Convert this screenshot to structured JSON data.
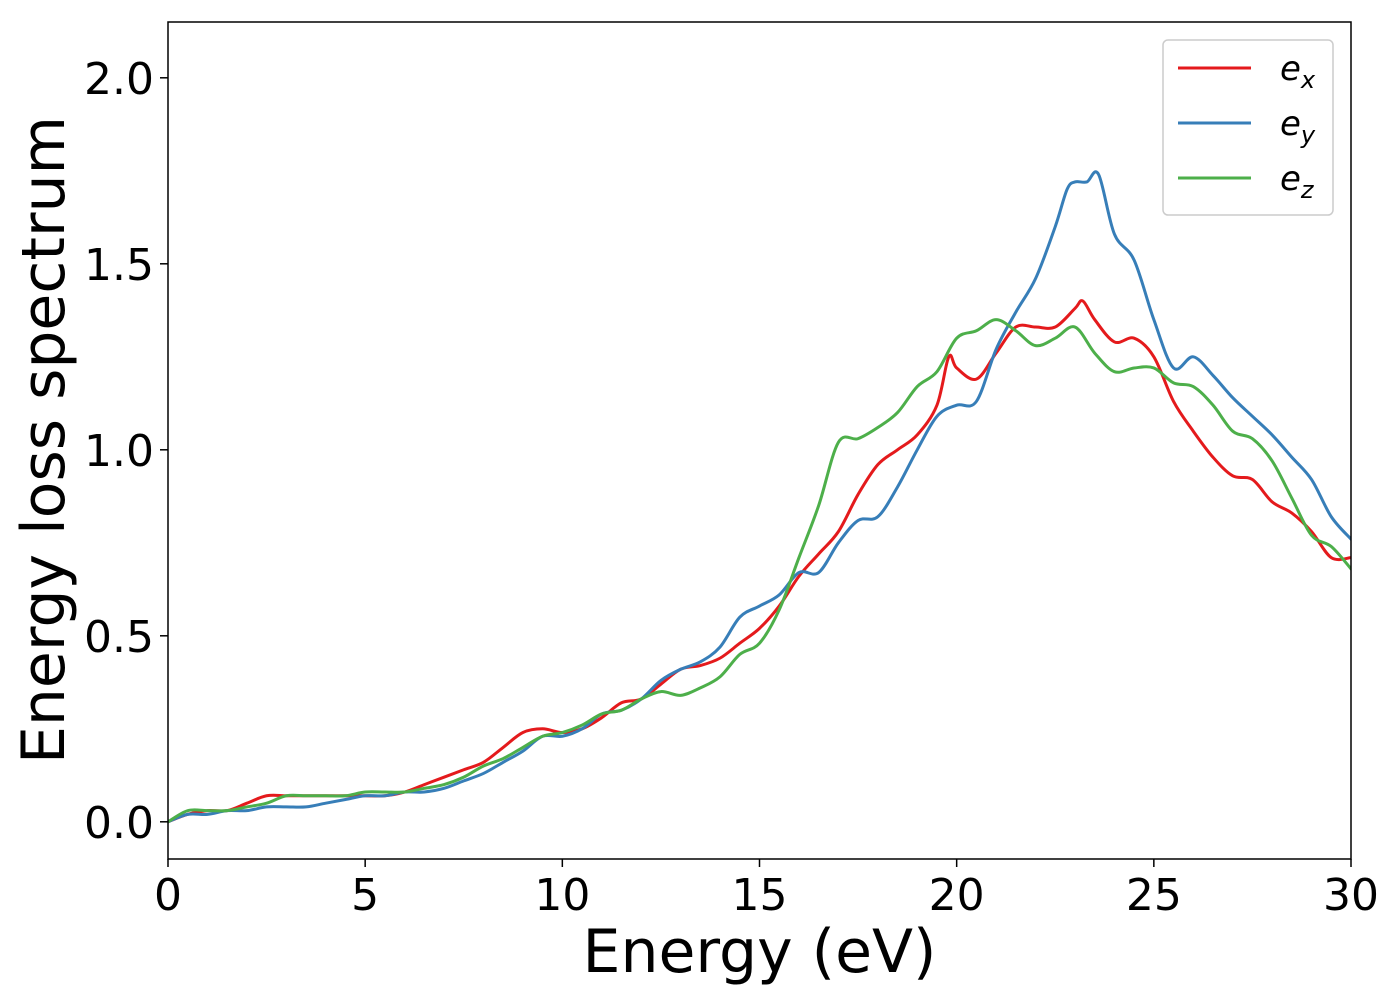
{
  "chart_data": {
    "type": "line",
    "xlabel": "Energy (eV)",
    "ylabel": "Energy loss spectrum",
    "xlim": [
      0,
      30
    ],
    "ylim": [
      -0.1,
      2.15
    ],
    "xticks": [
      "0",
      "5",
      "10",
      "15",
      "20",
      "25",
      "30"
    ],
    "yticks": [
      "0.0",
      "0.5",
      "1.0",
      "1.5",
      "2.0"
    ],
    "grid": false,
    "legend_position": "top-right",
    "series": [
      {
        "base": "e",
        "sub": "x",
        "color": "#e41a1c",
        "x": [
          0,
          0.5,
          1,
          1.5,
          2,
          2.5,
          3,
          3.5,
          4,
          4.5,
          5,
          5.5,
          6,
          6.5,
          7,
          7.5,
          8,
          8.5,
          9,
          9.5,
          10,
          10.5,
          11,
          11.5,
          12,
          12.5,
          13,
          13.5,
          14,
          14.5,
          15,
          15.5,
          16,
          16.5,
          17,
          17.5,
          18,
          18.5,
          19,
          19.5,
          19.8,
          20,
          20.5,
          21,
          21.5,
          22,
          22.5,
          23,
          23.2,
          23.5,
          24,
          24.5,
          25,
          25.5,
          26,
          26.5,
          27,
          27.5,
          28,
          28.5,
          29,
          29.5,
          30
        ],
        "y": [
          0.0,
          0.02,
          0.03,
          0.03,
          0.05,
          0.07,
          0.07,
          0.07,
          0.07,
          0.07,
          0.07,
          0.07,
          0.08,
          0.1,
          0.12,
          0.14,
          0.16,
          0.2,
          0.24,
          0.25,
          0.24,
          0.25,
          0.28,
          0.32,
          0.33,
          0.37,
          0.41,
          0.42,
          0.44,
          0.48,
          0.52,
          0.58,
          0.66,
          0.72,
          0.78,
          0.88,
          0.96,
          1.0,
          1.04,
          1.12,
          1.25,
          1.22,
          1.19,
          1.26,
          1.33,
          1.33,
          1.33,
          1.38,
          1.4,
          1.35,
          1.29,
          1.3,
          1.25,
          1.13,
          1.05,
          0.98,
          0.93,
          0.92,
          0.86,
          0.83,
          0.78,
          0.71,
          0.71
        ]
      },
      {
        "base": "e",
        "sub": "y",
        "color": "#377eb8",
        "x": [
          0,
          0.5,
          1,
          1.5,
          2,
          2.5,
          3,
          3.5,
          4,
          4.5,
          5,
          5.5,
          6,
          6.5,
          7,
          7.5,
          8,
          8.5,
          9,
          9.5,
          10,
          10.5,
          11,
          11.5,
          12,
          12.5,
          13,
          13.5,
          14,
          14.5,
          15,
          15.5,
          16,
          16.5,
          17,
          17.5,
          18,
          18.5,
          19,
          19.5,
          20,
          20.5,
          21,
          21.5,
          22,
          22.5,
          22.8,
          23,
          23.3,
          23.6,
          24,
          24.5,
          25,
          25.5,
          26,
          26.5,
          27,
          27.5,
          28,
          28.5,
          29,
          29.5,
          30
        ],
        "y": [
          0.0,
          0.02,
          0.02,
          0.03,
          0.03,
          0.04,
          0.04,
          0.04,
          0.05,
          0.06,
          0.07,
          0.07,
          0.08,
          0.08,
          0.09,
          0.11,
          0.13,
          0.16,
          0.19,
          0.23,
          0.23,
          0.25,
          0.29,
          0.3,
          0.33,
          0.38,
          0.41,
          0.43,
          0.47,
          0.55,
          0.58,
          0.61,
          0.67,
          0.67,
          0.75,
          0.81,
          0.82,
          0.9,
          1.0,
          1.09,
          1.12,
          1.13,
          1.27,
          1.37,
          1.46,
          1.6,
          1.7,
          1.72,
          1.72,
          1.74,
          1.58,
          1.51,
          1.35,
          1.22,
          1.25,
          1.2,
          1.14,
          1.09,
          1.04,
          0.98,
          0.92,
          0.82,
          0.76
        ]
      },
      {
        "base": "e",
        "sub": "z",
        "color": "#4daf4a",
        "x": [
          0,
          0.5,
          1,
          1.5,
          2,
          2.5,
          3,
          3.5,
          4,
          4.5,
          5,
          5.5,
          6,
          6.5,
          7,
          7.5,
          8,
          8.5,
          9,
          9.5,
          10,
          10.5,
          11,
          11.5,
          12,
          12.5,
          13,
          13.5,
          14,
          14.5,
          15,
          15.5,
          16,
          16.5,
          17,
          17.5,
          18,
          18.5,
          19,
          19.5,
          20,
          20.5,
          21,
          21.5,
          22,
          22.5,
          23,
          23.5,
          24,
          24.5,
          25,
          25.5,
          26,
          26.5,
          27,
          27.5,
          28,
          28.5,
          29,
          29.5,
          30
        ],
        "y": [
          0.0,
          0.03,
          0.03,
          0.03,
          0.04,
          0.05,
          0.07,
          0.07,
          0.07,
          0.07,
          0.08,
          0.08,
          0.08,
          0.09,
          0.1,
          0.12,
          0.15,
          0.17,
          0.2,
          0.23,
          0.24,
          0.26,
          0.29,
          0.3,
          0.33,
          0.35,
          0.34,
          0.36,
          0.39,
          0.45,
          0.48,
          0.57,
          0.71,
          0.85,
          1.02,
          1.03,
          1.06,
          1.1,
          1.17,
          1.21,
          1.3,
          1.32,
          1.35,
          1.32,
          1.28,
          1.3,
          1.33,
          1.26,
          1.21,
          1.22,
          1.22,
          1.18,
          1.17,
          1.12,
          1.05,
          1.03,
          0.97,
          0.87,
          0.77,
          0.74,
          0.68
        ]
      }
    ]
  }
}
